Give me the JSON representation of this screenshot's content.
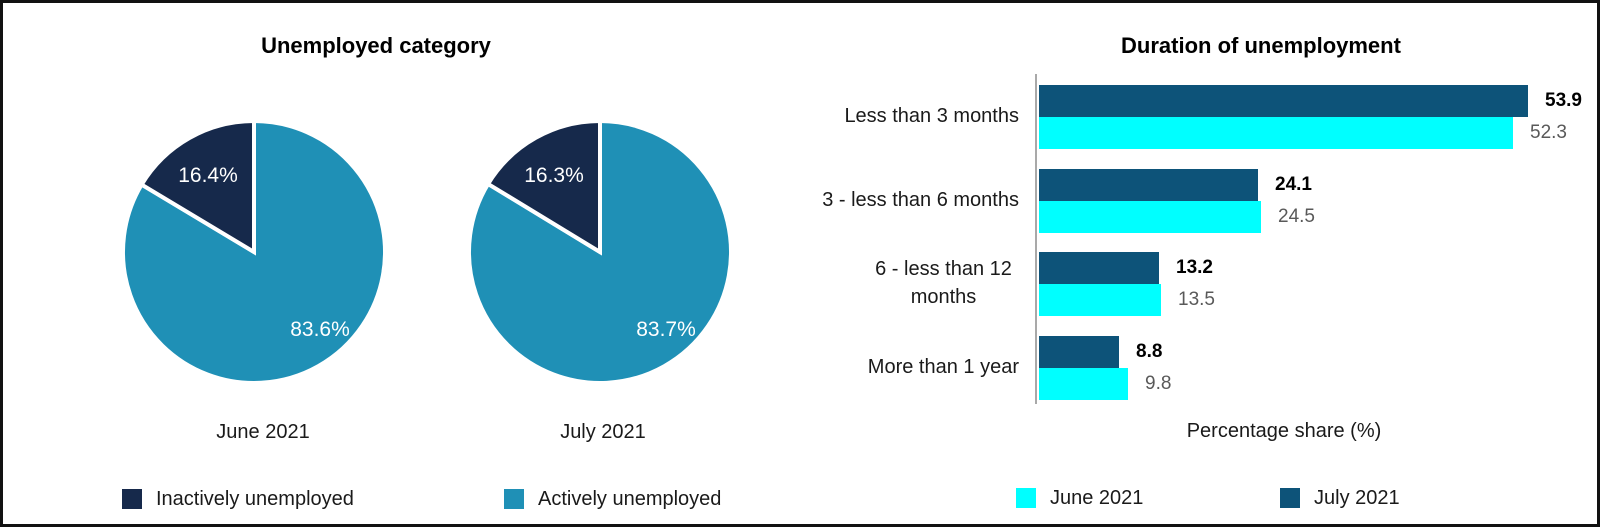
{
  "chart_data": [
    {
      "type": "pie",
      "title": "Unemployed category",
      "subtitle": "June 2021",
      "slices": [
        {
          "name": "Actively unemployed",
          "value": 83.6,
          "label": "83.6%",
          "color": "#1F90B6"
        },
        {
          "name": "Inactively unemployed",
          "value": 16.4,
          "label": "16.4%",
          "color": "#16294B"
        }
      ]
    },
    {
      "type": "pie",
      "title": "Unemployed category",
      "subtitle": "July 2021",
      "slices": [
        {
          "name": "Actively unemployed",
          "value": 83.7,
          "label": "83.7%",
          "color": "#1F90B6"
        },
        {
          "name": "Inactively unemployed",
          "value": 16.3,
          "label": "16.3%",
          "color": "#16294B"
        }
      ]
    },
    {
      "type": "bar",
      "orientation": "horizontal",
      "title": "Duration of unemployment",
      "xlabel": "Percentage share (%)",
      "categories": [
        "Less than 3 months",
        "3 - less than 6 months",
        "6 - less than 12 months",
        "More than 1 year"
      ],
      "series": [
        {
          "name": "July 2021",
          "color": "#0D5379",
          "values": [
            53.9,
            24.1,
            13.2,
            8.8
          ],
          "label_weight": "bold",
          "label_color": "#000000"
        },
        {
          "name": "June 2021",
          "color": "#00FFFF",
          "values": [
            52.3,
            24.5,
            13.5,
            9.8
          ],
          "label_weight": "normal",
          "label_color": "#595959"
        }
      ],
      "xlim": [
        0,
        60
      ],
      "grid": false,
      "legend_position": "bottom",
      "legend_order": [
        "June 2021",
        "July 2021"
      ]
    }
  ],
  "left_legend": [
    {
      "label": "Inactively unemployed",
      "color": "#16294B"
    },
    {
      "label": "Actively unemployed",
      "color": "#1F90B6"
    }
  ],
  "right_legend": [
    {
      "label": "June 2021",
      "color": "#00FFFF"
    },
    {
      "label": "July 2021",
      "color": "#0D5379"
    }
  ]
}
